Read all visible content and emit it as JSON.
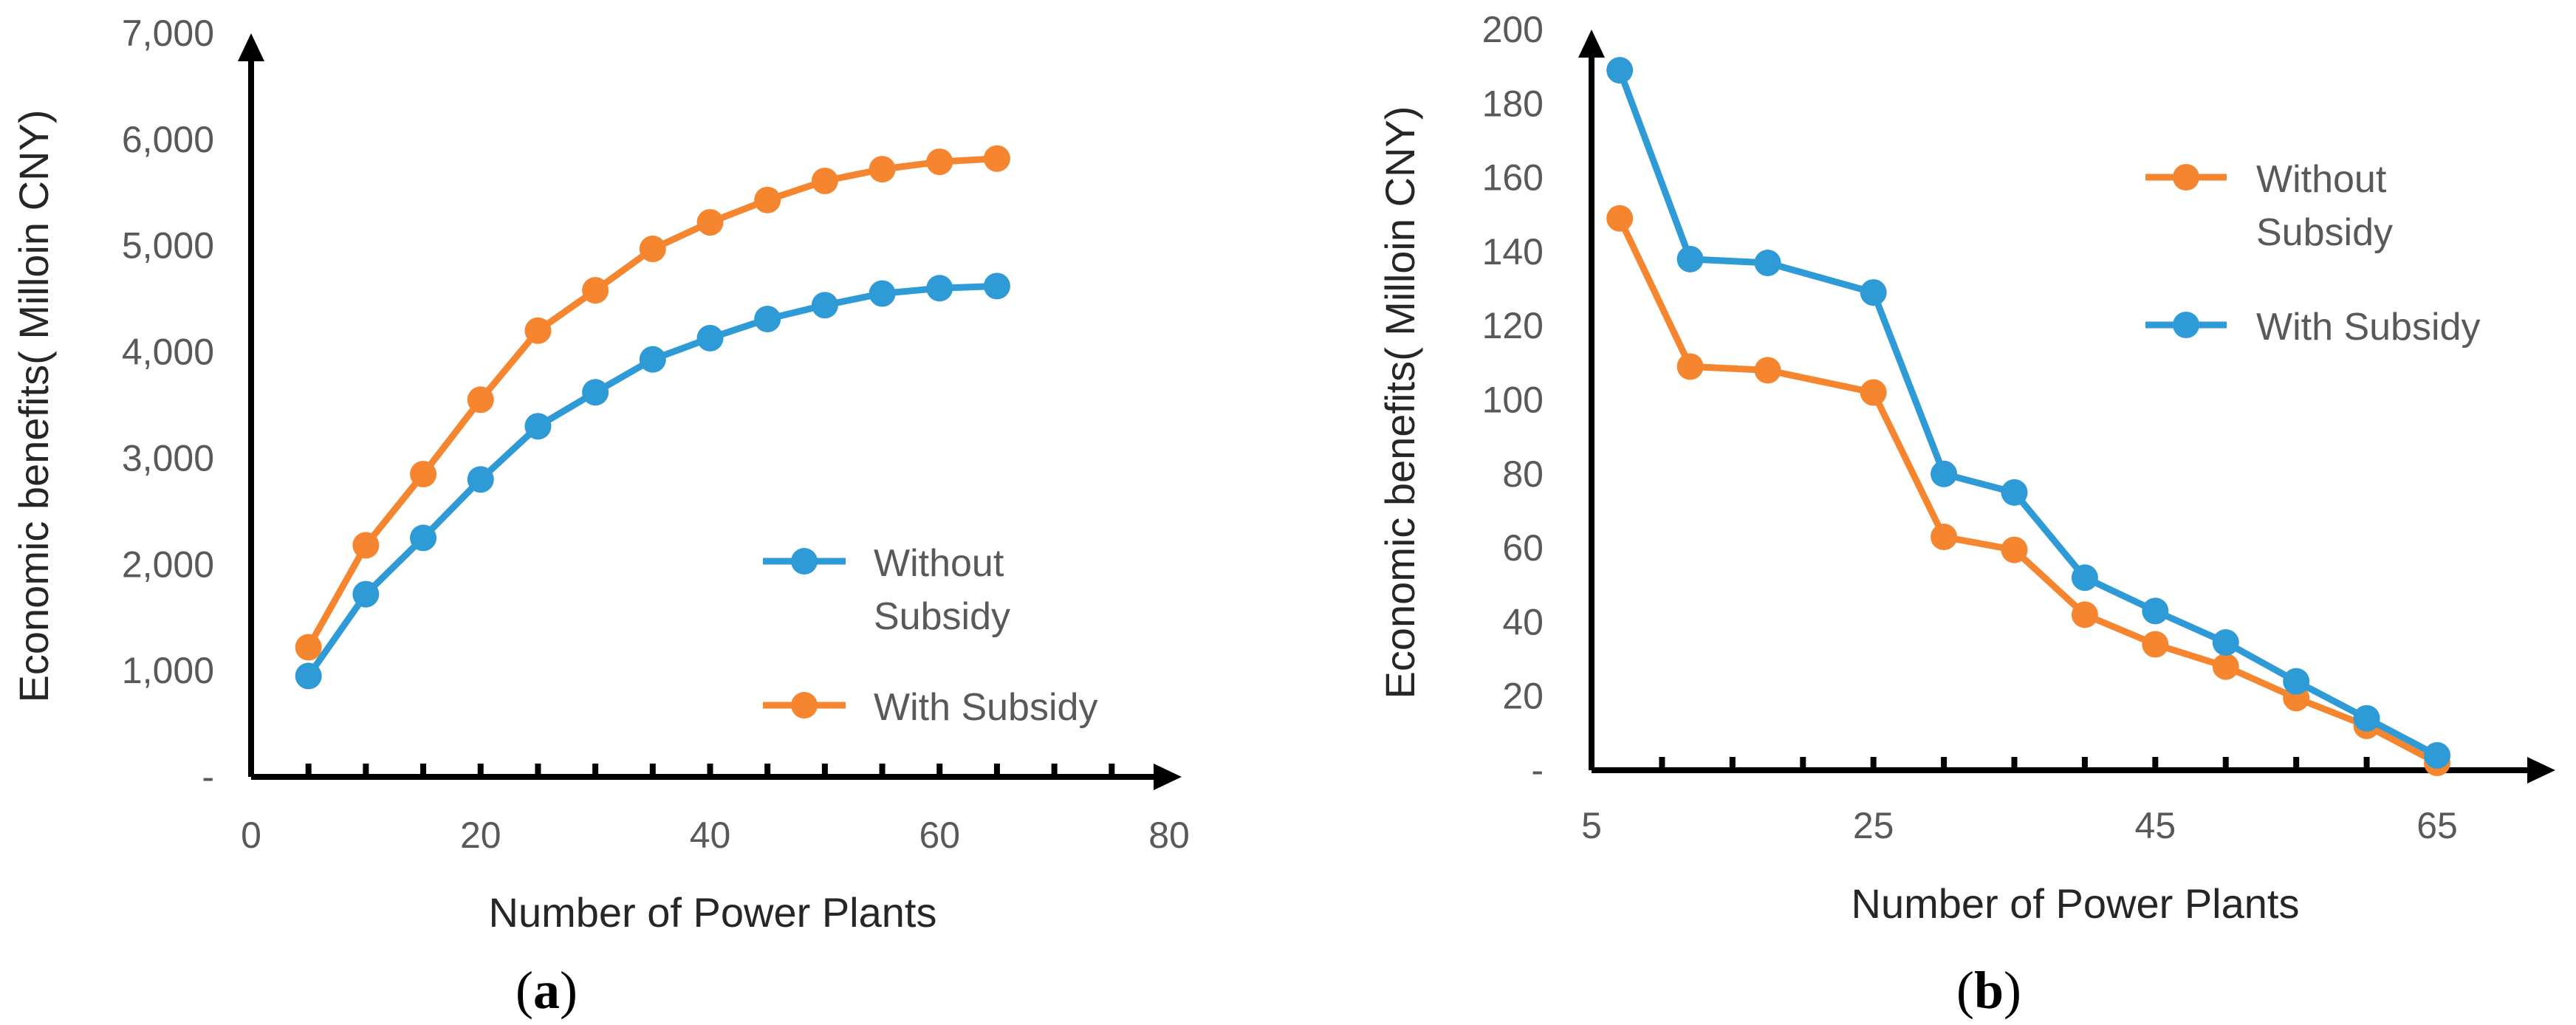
{
  "chart_data": [
    {
      "panel": "a",
      "type": "line",
      "xlabel": "Number of Power Plants",
      "ylabel": "Economic benefits( Milloin CNY)",
      "xlim": [
        0,
        80
      ],
      "ylim": [
        0,
        7000
      ],
      "x_ticks": [
        0,
        20,
        40,
        60,
        80
      ],
      "x_tick_labels": [
        "0",
        "20",
        "40",
        "60",
        "80"
      ],
      "y_ticks": [
        0,
        1000,
        2000,
        3000,
        4000,
        5000,
        6000,
        7000
      ],
      "y_tick_labels": [
        "-",
        "1,000",
        "2,000",
        "3,000",
        "4,000",
        "5,000",
        "6,000",
        "7,000"
      ],
      "x_minor_ticks": [
        5,
        10,
        15,
        20,
        25,
        30,
        35,
        40,
        45,
        50,
        55,
        60,
        65,
        70,
        75
      ],
      "y_minor_ticks": [],
      "legend_position": "bottom-right",
      "series": [
        {
          "name": "Without Subsidy",
          "legend_lines": [
            "Without",
            "Subsidy"
          ],
          "color": "#2E9BD6",
          "x": [
            5,
            10,
            15,
            20,
            25,
            30,
            35,
            40,
            45,
            50,
            55,
            60,
            65
          ],
          "y": [
            950,
            1720,
            2250,
            2800,
            3300,
            3620,
            3930,
            4130,
            4310,
            4440,
            4550,
            4600,
            4620
          ]
        },
        {
          "name": "With Subsidy",
          "legend_lines": [
            "With Subsidy"
          ],
          "color": "#F5862F",
          "x": [
            5,
            10,
            15,
            20,
            25,
            30,
            35,
            40,
            45,
            50,
            55,
            60,
            65
          ],
          "y": [
            1220,
            2180,
            2850,
            3550,
            4200,
            4580,
            4970,
            5220,
            5430,
            5610,
            5720,
            5790,
            5820
          ]
        }
      ]
    },
    {
      "panel": "b",
      "type": "line",
      "xlabel": "Number of Power Plants",
      "ylabel": "Economic benefits( Milloin CNY)",
      "xlim": [
        5,
        70
      ],
      "ylim": [
        0,
        200
      ],
      "x_ticks": [
        5,
        25,
        45,
        65
      ],
      "x_tick_labels": [
        "5",
        "25",
        "45",
        "65"
      ],
      "y_ticks": [
        0,
        20,
        40,
        60,
        80,
        100,
        120,
        140,
        160,
        180,
        200
      ],
      "y_tick_labels": [
        "-",
        "20",
        "40",
        "60",
        "80",
        "100",
        "120",
        "140",
        "160",
        "180",
        "200"
      ],
      "x_minor_ticks": [
        10,
        15,
        20,
        25,
        30,
        35,
        40,
        45,
        50,
        55,
        60,
        65
      ],
      "y_minor_ticks": [],
      "legend_position": "top-right",
      "series": [
        {
          "name": "Without Subsidy",
          "legend_lines": [
            "Without",
            "Subsidy"
          ],
          "color": "#F5862F",
          "x": [
            7,
            12,
            17.5,
            25,
            30,
            35,
            40,
            45,
            50,
            55,
            60,
            65
          ],
          "y": [
            149,
            109,
            108,
            102,
            63,
            59.5,
            42,
            34,
            28,
            19.5,
            12,
            2
          ]
        },
        {
          "name": "With Subsidy",
          "legend_lines": [
            "With Subsidy"
          ],
          "color": "#2E9BD6",
          "x": [
            7,
            12,
            17.5,
            25,
            30,
            35,
            40,
            45,
            50,
            55,
            60,
            65
          ],
          "y": [
            189,
            138,
            137,
            129,
            80,
            75,
            52,
            43,
            34.5,
            24,
            14,
            4
          ]
        }
      ]
    }
  ],
  "panel_labels": {
    "a": {
      "open": "(",
      "letter": "a",
      "close": ")"
    },
    "b": {
      "open": "(",
      "letter": "b",
      "close": ")"
    }
  }
}
